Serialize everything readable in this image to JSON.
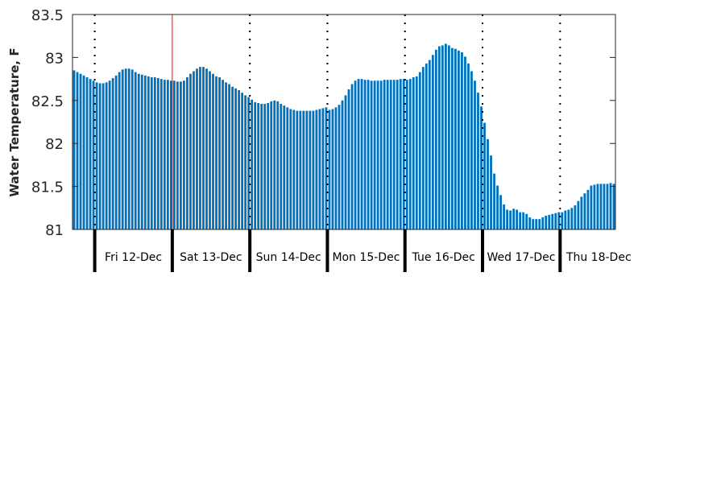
{
  "chart_data": {
    "type": "bar",
    "title": "",
    "xlabel": "",
    "ylabel": "Water Temperature, F",
    "ylim": [
      81,
      83.5
    ],
    "yticks": [
      "81",
      "81.5",
      "82",
      "82.5",
      "83",
      "83.5"
    ],
    "grid": false,
    "interval": "hourly",
    "day_labels": [
      "Fri 12-Dec",
      "Sat 13-Dec",
      "Sun 14-Dec",
      "Mon 15-Dec",
      "Tue 16-Dec",
      "Wed 17-Dec",
      "Thu 18-Dec"
    ],
    "first_day_start_index": 7,
    "highlight_day_boundary_index": 1,
    "colors": {
      "bar": "#0072BD",
      "highlight": "#FF0000",
      "axis": "#262626"
    },
    "values": [
      82.85,
      82.83,
      82.81,
      82.79,
      82.77,
      82.75,
      82.73,
      82.71,
      82.7,
      82.7,
      82.71,
      82.73,
      82.76,
      82.79,
      82.83,
      82.86,
      82.87,
      82.87,
      82.86,
      82.83,
      82.81,
      82.8,
      82.79,
      82.78,
      82.77,
      82.77,
      82.76,
      82.75,
      82.74,
      82.74,
      82.73,
      82.73,
      82.72,
      82.72,
      82.73,
      82.77,
      82.81,
      82.84,
      82.87,
      82.89,
      82.89,
      82.87,
      82.84,
      82.81,
      82.78,
      82.77,
      82.74,
      82.71,
      82.69,
      82.66,
      82.64,
      82.62,
      82.59,
      82.56,
      82.54,
      82.51,
      82.48,
      82.47,
      82.46,
      82.46,
      82.47,
      82.49,
      82.5,
      82.49,
      82.46,
      82.44,
      82.42,
      82.4,
      82.39,
      82.38,
      82.38,
      82.38,
      82.38,
      82.38,
      82.38,
      82.39,
      82.4,
      82.41,
      82.42,
      82.39,
      82.4,
      82.42,
      82.45,
      82.5,
      82.56,
      82.63,
      82.69,
      82.73,
      82.75,
      82.75,
      82.74,
      82.74,
      82.73,
      82.73,
      82.73,
      82.73,
      82.74,
      82.74,
      82.74,
      82.74,
      82.74,
      82.75,
      82.75,
      82.74,
      82.75,
      82.77,
      82.78,
      82.83,
      82.89,
      82.93,
      82.97,
      83.03,
      83.09,
      83.13,
      83.14,
      83.16,
      83.14,
      83.11,
      83.1,
      83.08,
      83.06,
      83.01,
      82.93,
      82.84,
      82.73,
      82.59,
      82.43,
      82.24,
      82.05,
      81.86,
      81.65,
      81.51,
      81.4,
      81.29,
      81.23,
      81.22,
      81.24,
      81.23,
      81.2,
      81.2,
      81.18,
      81.14,
      81.12,
      81.12,
      81.12,
      81.14,
      81.16,
      81.17,
      81.18,
      81.19,
      81.2,
      81.2,
      81.22,
      81.23,
      81.25,
      81.28,
      81.33,
      81.38,
      81.42,
      81.46,
      81.51,
      81.52,
      81.53,
      81.53,
      81.53,
      81.53,
      81.54,
      81.53
    ]
  }
}
